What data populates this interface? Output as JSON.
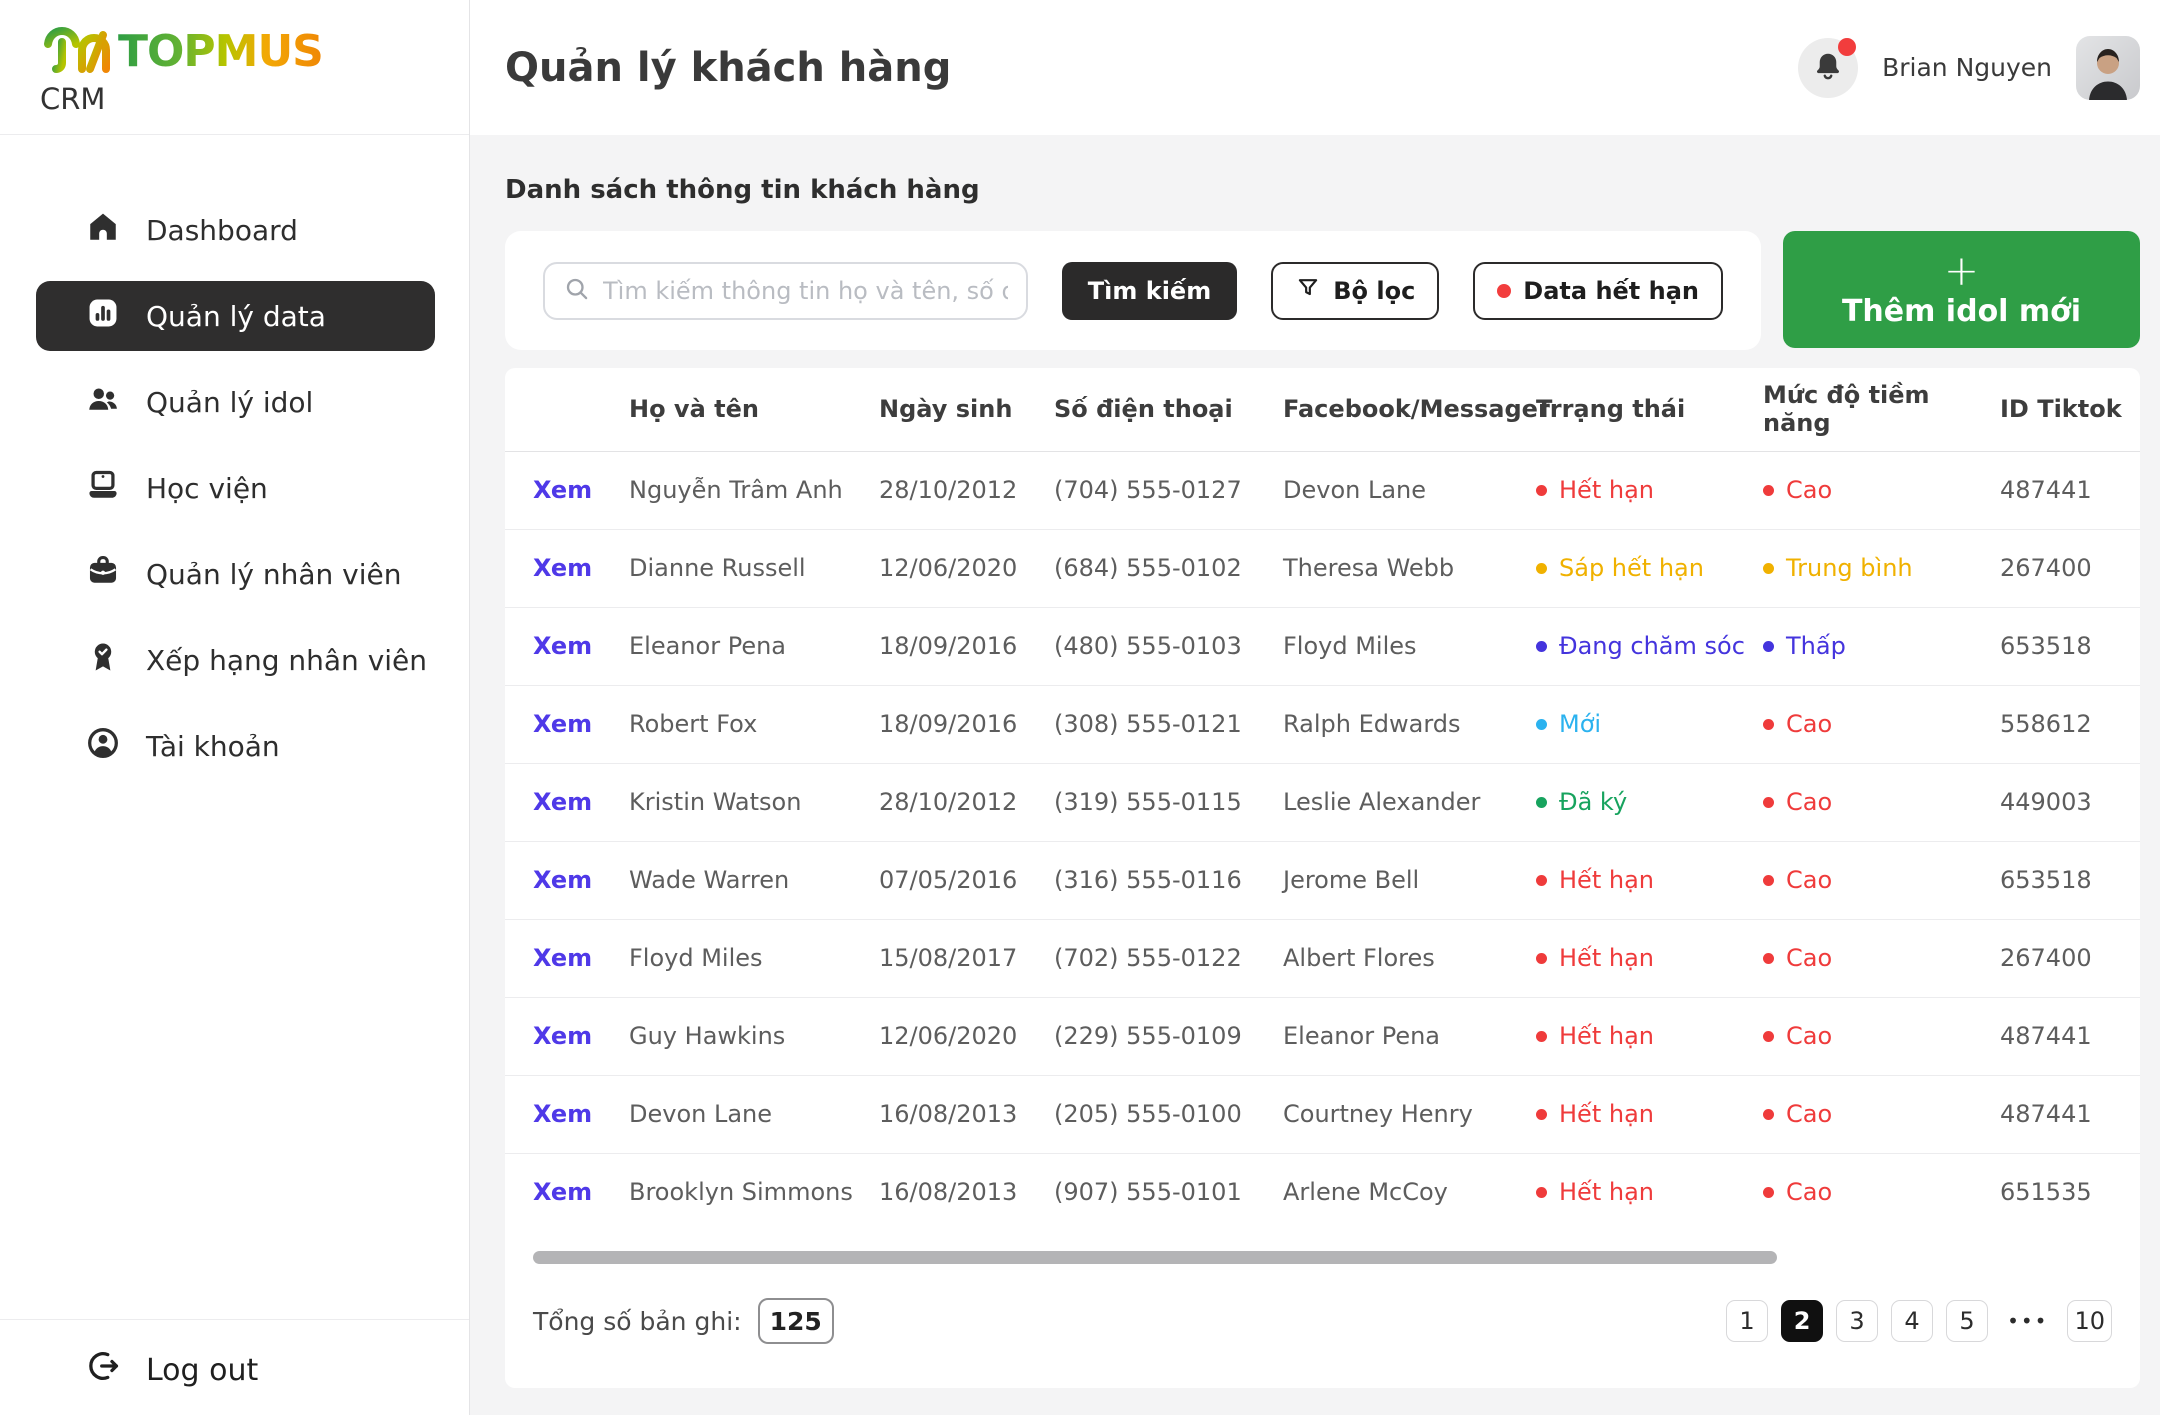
{
  "brand": {
    "logo_text": "TOPMUS",
    "subtitle": "CRM"
  },
  "sidebar": {
    "items": [
      {
        "label": "Dashboard",
        "icon": "home-icon",
        "active": false
      },
      {
        "label": "Quản lý data",
        "icon": "bar-chart-icon",
        "active": true
      },
      {
        "label": "Quản lý idol",
        "icon": "people-icon",
        "active": false
      },
      {
        "label": "Học viện",
        "icon": "laptop-icon",
        "active": false
      },
      {
        "label": "Quản lý nhân viên",
        "icon": "briefcase-icon",
        "active": false
      },
      {
        "label": "Xếp hạng nhân viên",
        "icon": "medal-icon",
        "active": false
      },
      {
        "label": "Tài khoản",
        "icon": "account-icon",
        "active": false
      }
    ],
    "logout_label": "Log out"
  },
  "header": {
    "title": "Quản lý khách hàng",
    "user_name": "Brian Nguyen"
  },
  "toolbar": {
    "section_title": "Danh sách thông tin khách hàng",
    "search_placeholder": "Tìm kiếm thông tin họ và tên, số điện thoại, ID TikTok,...",
    "search_button": "Tìm kiếm",
    "filter_button": "Bộ lọc",
    "expired_button": "Data hết hạn",
    "add_button_plus": "+",
    "add_button": "Thêm idol mới"
  },
  "table": {
    "view_label": "Xem",
    "columns": [
      "Họ và tên",
      "Ngày sinh",
      "Số điện thoại",
      "Facebook/Messager",
      "Trrạng thái",
      "Mức độ tiềm năng",
      "ID Tiktok"
    ],
    "rows": [
      {
        "name": "Nguyễn Trâm Anh",
        "dob": "28/10/2012",
        "phone": "(704) 555-0127",
        "facebook": "Devon Lane",
        "status": "Hết hạn",
        "status_color": "red",
        "potential": "Cao",
        "potential_color": "red",
        "tiktok_id": "487441"
      },
      {
        "name": "Dianne Russell",
        "dob": "12/06/2020",
        "phone": "(684) 555-0102",
        "facebook": "Theresa Webb",
        "status": "Sáp hết hạn",
        "status_color": "yellow",
        "potential": "Trung bình",
        "potential_color": "yellow",
        "tiktok_id": "267400"
      },
      {
        "name": "Eleanor Pena",
        "dob": "18/09/2016",
        "phone": "(480) 555-0103",
        "facebook": "Floyd Miles",
        "status": "Đang chăm sóc",
        "status_color": "blue",
        "potential": "Thấp",
        "potential_color": "blue",
        "tiktok_id": "653518"
      },
      {
        "name": "Robert Fox",
        "dob": "18/09/2016",
        "phone": "(308) 555-0121",
        "facebook": "Ralph Edwards",
        "status": "Mới",
        "status_color": "cyan",
        "potential": "Cao",
        "potential_color": "red",
        "tiktok_id": "558612"
      },
      {
        "name": "Kristin Watson",
        "dob": "28/10/2012",
        "phone": "(319) 555-0115",
        "facebook": "Leslie Alexander",
        "status": "Đã ký",
        "status_color": "green",
        "potential": "Cao",
        "potential_color": "red",
        "tiktok_id": "449003"
      },
      {
        "name": "Wade Warren",
        "dob": "07/05/2016",
        "phone": "(316) 555-0116",
        "facebook": "Jerome Bell",
        "status": "Hết hạn",
        "status_color": "red",
        "potential": "Cao",
        "potential_color": "red",
        "tiktok_id": "653518"
      },
      {
        "name": "Floyd Miles",
        "dob": "15/08/2017",
        "phone": "(702) 555-0122",
        "facebook": "Albert Flores",
        "status": "Hết hạn",
        "status_color": "red",
        "potential": "Cao",
        "potential_color": "red",
        "tiktok_id": "267400"
      },
      {
        "name": "Guy Hawkins",
        "dob": "12/06/2020",
        "phone": "(229) 555-0109",
        "facebook": "Eleanor Pena",
        "status": "Hết hạn",
        "status_color": "red",
        "potential": "Cao",
        "potential_color": "red",
        "tiktok_id": "487441"
      },
      {
        "name": "Devon Lane",
        "dob": "16/08/2013",
        "phone": "(205) 555-0100",
        "facebook": "Courtney Henry",
        "status": "Hết hạn",
        "status_color": "red",
        "potential": "Cao",
        "potential_color": "red",
        "tiktok_id": "487441"
      },
      {
        "name": "Brooklyn Simmons",
        "dob": "16/08/2013",
        "phone": "(907) 555-0101",
        "facebook": "Arlene McCoy",
        "status": "Hết hạn",
        "status_color": "red",
        "potential": "Cao",
        "potential_color": "red",
        "tiktok_id": "651535"
      }
    ]
  },
  "footer": {
    "total_label": "Tổng số bản ghi:",
    "total_value": "125",
    "pages": [
      "1",
      "2",
      "3",
      "4",
      "5",
      "•••",
      "10"
    ],
    "active_index": 1
  },
  "colors": {
    "brand_green": "#2f9e46",
    "brand_orange": "#f08705",
    "status_red": "#ef3b3b",
    "status_yellow": "#f0b100",
    "status_blue": "#4434dd",
    "status_cyan": "#2bb2ef",
    "status_green": "#17a35e",
    "link_blue": "#4f39e8",
    "notification_red": "#f23d3d",
    "dark_button": "#2b2a2a"
  }
}
